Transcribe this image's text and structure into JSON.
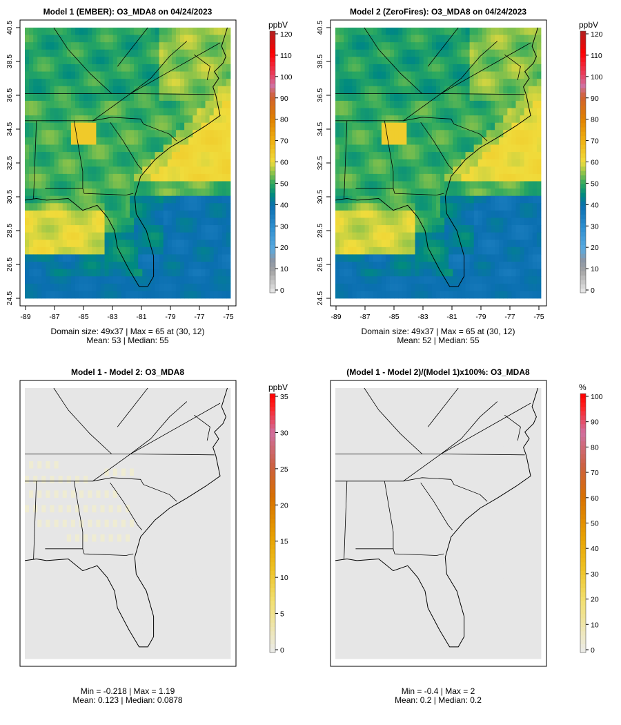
{
  "panels": [
    {
      "title": "Model 1 (EMBER): O3_MDA8 on 04/24/2023",
      "caption1": "Domain size: 49x37 | Max = 65 at (30, 12)",
      "caption2": "Mean: 53 |  Median: 55",
      "unit": "ppbV",
      "scale": "ozone",
      "shift": 0
    },
    {
      "title": "Model 2 (ZeroFires): O3_MDA8 on 04/24/2023",
      "caption1": "Domain size: 49x37 | Max = 65 at (30, 12)",
      "caption2": "Mean: 52 |  Median: 55",
      "unit": "ppbV",
      "scale": "ozone",
      "shift": -0.6
    },
    {
      "title": "Model 1 - Model 2: O3_MDA8",
      "caption1": "Min = -0.218 | Max = 1.19",
      "caption2": "Mean: 0.123 |  Median: 0.0878",
      "unit": "ppbV",
      "scale": "diff"
    },
    {
      "title": "(Model 1 - Model 2)/(Model 1)x100%: O3_MDA8",
      "caption1": "Min = -0.4 | Max = 2",
      "caption2": "Mean: 0.2 |  Median: 0.2",
      "unit": "%",
      "scale": "pct"
    }
  ],
  "axes": {
    "lon_ticks": [
      "-89",
      "-87",
      "-85",
      "-83",
      "-81",
      "-79",
      "-77",
      "-75"
    ],
    "lat_ticks": [
      "24.5",
      "26.5",
      "28.5",
      "30.5",
      "32.5",
      "34.5",
      "36.5",
      "38.5",
      "40.5"
    ]
  },
  "colorbars": {
    "ozone": {
      "min": 0,
      "max": 120,
      "ticks": [
        "0",
        "10",
        "20",
        "30",
        "40",
        "50",
        "60",
        "70",
        "80",
        "90",
        "100",
        "110",
        "120"
      ]
    },
    "diff": {
      "min": 0,
      "max": 35,
      "ticks": [
        "0",
        "5",
        "10",
        "15",
        "20",
        "25",
        "30",
        "35"
      ]
    },
    "pct": {
      "min": 0,
      "max": 100,
      "ticks": [
        "0",
        "10",
        "20",
        "30",
        "40",
        "50",
        "60",
        "70",
        "80",
        "90",
        "100"
      ]
    }
  },
  "colors": {
    "no_change": "#e6e6e6",
    "frame": "#000000"
  }
}
